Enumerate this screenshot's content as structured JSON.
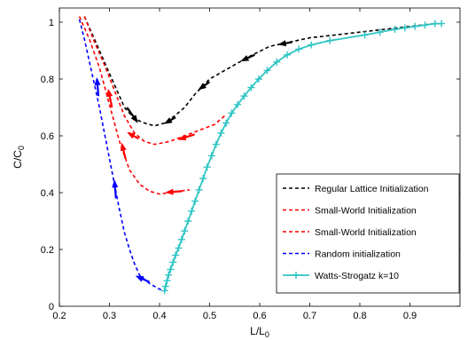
{
  "chart_data": {
    "type": "line",
    "title": "",
    "xlabel": "L/L",
    "xlabel_sub": "0",
    "ylabel": "C/C",
    "ylabel_sub": "0",
    "xlim": [
      0.2,
      1.0
    ],
    "ylim": [
      0.0,
      1.05
    ],
    "xticks": [
      0.2,
      0.3,
      0.4,
      0.5,
      0.6,
      0.7,
      0.8,
      0.9
    ],
    "xtick_labels": [
      "0.2",
      "0.3",
      "0.4",
      "0.5",
      "0.6",
      "0.7",
      "0.8",
      "0.9"
    ],
    "yticks": [
      0,
      0.2,
      0.4,
      0.6,
      0.8,
      1.0
    ],
    "ytick_labels": [
      "0",
      "0.2",
      "0.4",
      "0.6",
      "0.8",
      "1"
    ],
    "grid": false,
    "legend_position": "bottom-right",
    "series": [
      {
        "name": "Regular Lattice Initialization",
        "color": "#000000",
        "style": "dashed",
        "x": [
          0.25,
          0.27,
          0.29,
          0.31,
          0.33,
          0.35,
          0.37,
          0.39,
          0.41,
          0.43,
          0.45,
          0.47,
          0.5,
          0.54,
          0.58,
          0.62,
          0.66,
          0.7,
          0.75,
          0.8,
          0.85,
          0.9,
          0.95
        ],
        "y": [
          1.02,
          0.94,
          0.86,
          0.78,
          0.7,
          0.66,
          0.645,
          0.635,
          0.645,
          0.67,
          0.7,
          0.745,
          0.8,
          0.84,
          0.88,
          0.915,
          0.93,
          0.945,
          0.955,
          0.965,
          0.975,
          0.985,
          0.995
        ]
      },
      {
        "name": "Small-World Initialization",
        "color": "#ff0000",
        "style": "dashed",
        "x": [
          0.25,
          0.27,
          0.29,
          0.31,
          0.33,
          0.35,
          0.37,
          0.39,
          0.42,
          0.45,
          0.48,
          0.51,
          0.53
        ],
        "y": [
          1.02,
          0.93,
          0.85,
          0.76,
          0.67,
          0.61,
          0.58,
          0.57,
          0.58,
          0.6,
          0.62,
          0.64,
          0.67
        ]
      },
      {
        "name": "Small-World Initialization",
        "color": "#ff0000",
        "style": "dashed",
        "x": [
          0.24,
          0.26,
          0.28,
          0.3,
          0.32,
          0.34,
          0.36,
          0.38,
          0.4,
          0.42,
          0.44,
          0.46
        ],
        "y": [
          1.02,
          0.94,
          0.84,
          0.71,
          0.58,
          0.48,
          0.43,
          0.405,
          0.395,
          0.4,
          0.405,
          0.41
        ]
      },
      {
        "name": "Random initialization",
        "color": "#0000ff",
        "style": "dashed",
        "x": [
          0.24,
          0.25,
          0.26,
          0.27,
          0.28,
          0.29,
          0.3,
          0.31,
          0.32,
          0.33,
          0.34,
          0.35,
          0.36,
          0.38,
          0.4,
          0.41
        ],
        "y": [
          1.01,
          0.94,
          0.86,
          0.78,
          0.7,
          0.61,
          0.52,
          0.43,
          0.34,
          0.26,
          0.2,
          0.15,
          0.11,
          0.08,
          0.06,
          0.055
        ]
      },
      {
        "name": "Watts-Strogatz k=10",
        "color": "#2ec4c4",
        "style": "solid-plus",
        "x": [
          0.41,
          0.412,
          0.415,
          0.418,
          0.422,
          0.427,
          0.432,
          0.438,
          0.444,
          0.45,
          0.457,
          0.464,
          0.471,
          0.479,
          0.487,
          0.495,
          0.504,
          0.513,
          0.523,
          0.533,
          0.544,
          0.556,
          0.569,
          0.583,
          0.598,
          0.615,
          0.634,
          0.655,
          0.678,
          0.703,
          0.74,
          0.81,
          0.84,
          0.87,
          0.89,
          0.91,
          0.93,
          0.95,
          0.963
        ],
        "y": [
          0.055,
          0.07,
          0.09,
          0.11,
          0.13,
          0.155,
          0.18,
          0.205,
          0.235,
          0.265,
          0.3,
          0.335,
          0.37,
          0.41,
          0.45,
          0.49,
          0.53,
          0.57,
          0.61,
          0.645,
          0.68,
          0.71,
          0.74,
          0.77,
          0.8,
          0.83,
          0.86,
          0.885,
          0.905,
          0.92,
          0.935,
          0.955,
          0.965,
          0.975,
          0.98,
          0.985,
          0.99,
          0.995,
          0.995
        ]
      }
    ],
    "arrows": [
      {
        "color": "#000000",
        "x": 0.335,
        "y": 0.7,
        "dx": 0.02,
        "dy": -0.05
      },
      {
        "color": "#000000",
        "x": 0.432,
        "y": 0.665,
        "dx": -0.02,
        "dy": -0.02
      },
      {
        "color": "#000000",
        "x": 0.5,
        "y": 0.79,
        "dx": -0.02,
        "dy": -0.025
      },
      {
        "color": "#000000",
        "x": 0.59,
        "y": 0.885,
        "dx": -0.025,
        "dy": -0.02
      },
      {
        "color": "#000000",
        "x": 0.665,
        "y": 0.93,
        "dx": -0.025,
        "dy": -0.008
      },
      {
        "color": "#ff0000",
        "x": 0.305,
        "y": 0.7,
        "dx": -0.007,
        "dy": 0.06
      },
      {
        "color": "#ff0000",
        "x": 0.358,
        "y": 0.59,
        "dx": -0.02,
        "dy": 0.02
      },
      {
        "color": "#ff0000",
        "x": 0.47,
        "y": 0.605,
        "dx": -0.03,
        "dy": -0.017
      },
      {
        "color": "#ff0000",
        "x": 0.332,
        "y": 0.52,
        "dx": -0.007,
        "dy": 0.05
      },
      {
        "color": "#ff0000",
        "x": 0.445,
        "y": 0.405,
        "dx": -0.03,
        "dy": -0.004
      },
      {
        "color": "#0000ff",
        "x": 0.278,
        "y": 0.74,
        "dx": -0.003,
        "dy": 0.06
      },
      {
        "color": "#0000ff",
        "x": 0.313,
        "y": 0.38,
        "dx": -0.003,
        "dy": 0.06
      },
      {
        "color": "#0000ff",
        "x": 0.38,
        "y": 0.085,
        "dx": -0.025,
        "dy": 0.02
      }
    ]
  }
}
